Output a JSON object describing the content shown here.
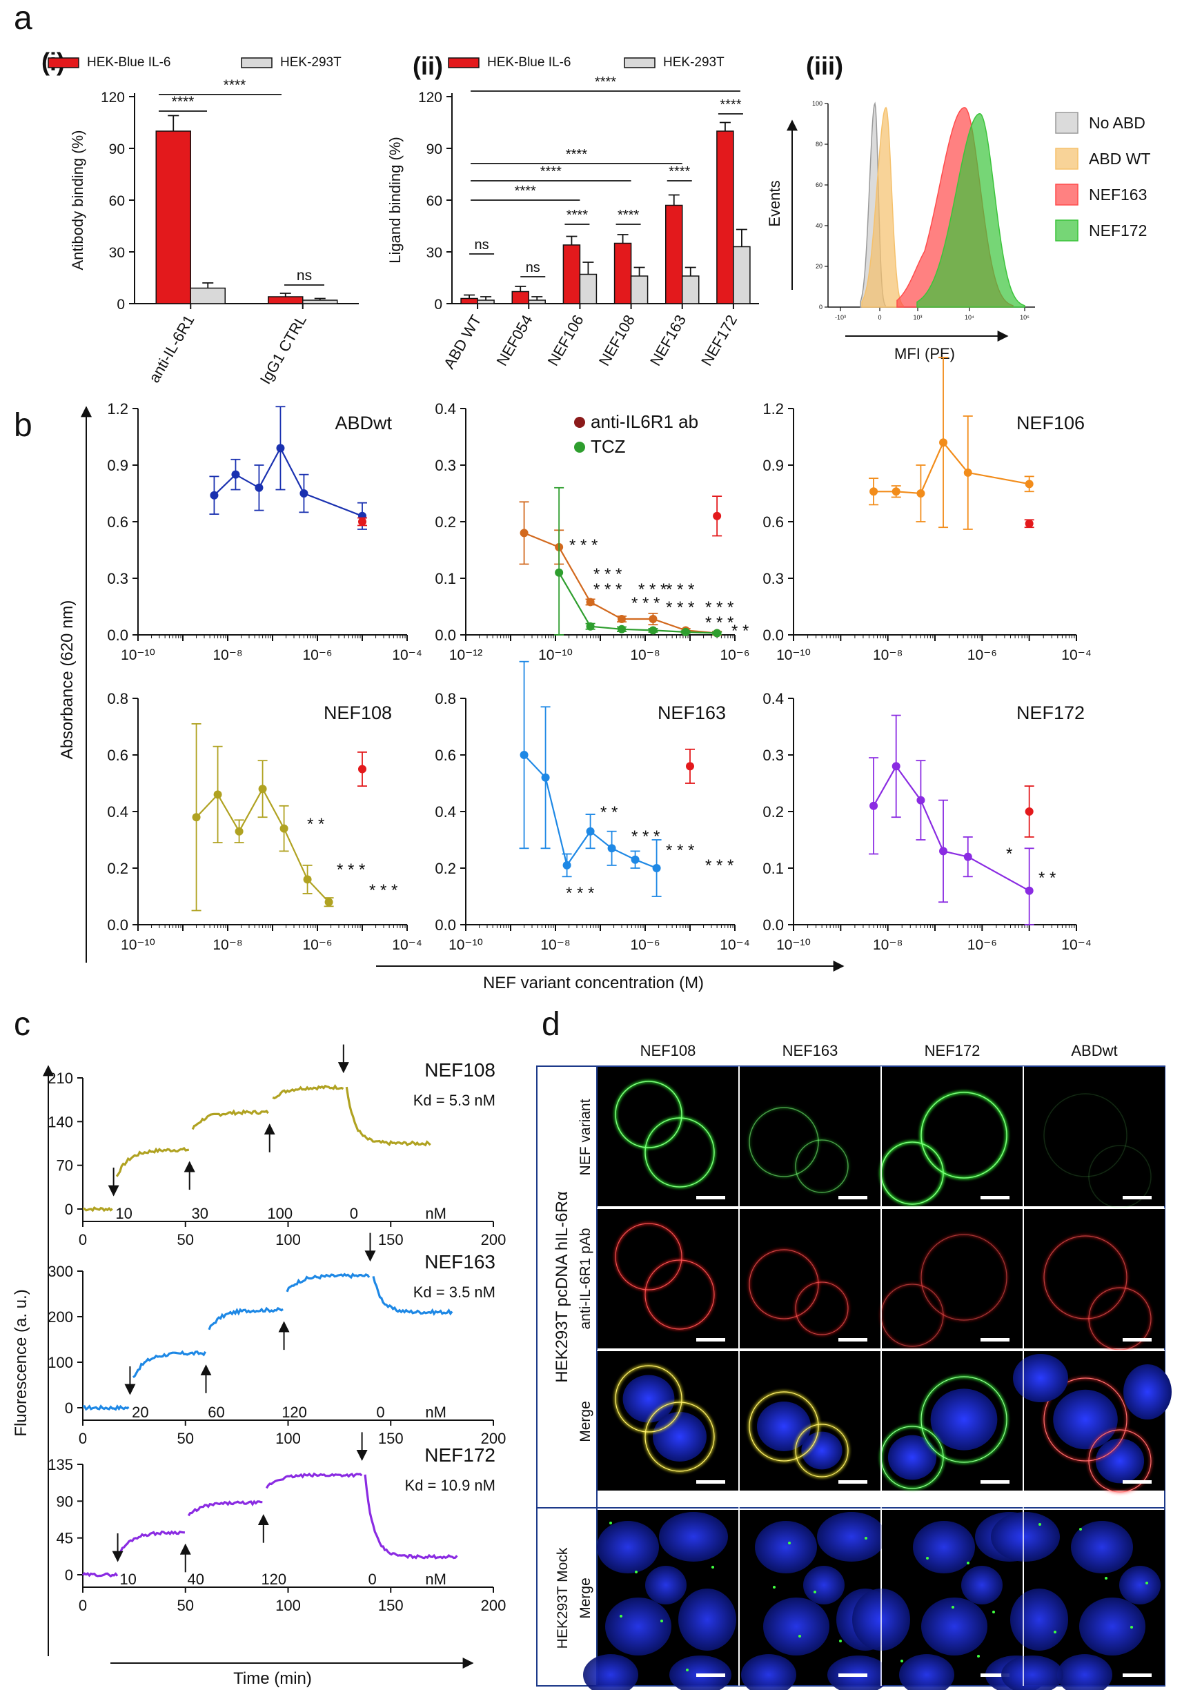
{
  "panel_labels": {
    "a": "a",
    "b": "b",
    "c": "c",
    "d": "d"
  },
  "subpanel_labels": {
    "i": "(i)",
    "ii": "(ii)",
    "iii": "(iii)"
  },
  "colors": {
    "red": "#e3191c",
    "gray": "#d9d9d9",
    "blue": "#1a31b0",
    "orange": "#f28c1a",
    "olive": "#b0a221",
    "sky": "#1e88e5",
    "purple": "#8a2be2",
    "dark_red": "#8b1a1a",
    "green": "#2e9e2e",
    "sienna": "#d2691e",
    "flow_gray": "#cccccc",
    "flow_tan": "#f5c16c",
    "flow_red": "#ff4c4c",
    "flow_green": "#3cc43c",
    "kd": "#9c1b5a"
  },
  "chart_data": [
    {
      "id": "a_i",
      "type": "bar",
      "legend": [
        "HEK-Blue IL-6",
        "HEK-293T"
      ],
      "categories": [
        "anti-IL-6R1",
        "IgG1 CTRL"
      ],
      "series": [
        {
          "name": "HEK-Blue IL-6",
          "values": [
            100,
            4
          ],
          "errors": [
            9,
            2
          ]
        },
        {
          "name": "HEK-293T",
          "values": [
            9,
            2
          ],
          "errors": [
            3,
            1
          ]
        }
      ],
      "ylabel": "Antibody binding (%)",
      "ylim": [
        0,
        120
      ],
      "yticks": [
        "0",
        "30",
        "60",
        "90",
        "120"
      ],
      "annotations": [
        {
          "text": "****",
          "from": 0,
          "to": 1
        },
        {
          "text": "****",
          "from": 0,
          "to": 0.3
        },
        {
          "text": "ns",
          "from": 1,
          "to": 1.3
        }
      ]
    },
    {
      "id": "a_ii",
      "type": "bar",
      "legend": [
        "HEK-Blue IL-6",
        "HEK-293T"
      ],
      "categories": [
        "ABD WT",
        "NEF054",
        "NEF106",
        "NEF108",
        "NEF163",
        "NEF172"
      ],
      "series": [
        {
          "name": "HEK-Blue IL-6",
          "values": [
            3,
            7,
            34,
            35,
            57,
            100
          ],
          "errors": [
            2,
            3,
            5,
            5,
            6,
            5
          ]
        },
        {
          "name": "HEK-293T",
          "values": [
            2,
            2,
            17,
            16,
            16,
            33
          ],
          "errors": [
            2,
            2,
            7,
            5,
            5,
            10
          ]
        }
      ],
      "ylabel": "Ligand binding (%)",
      "ylim": [
        0,
        120
      ],
      "yticks": [
        "0",
        "30",
        "60",
        "90",
        "120"
      ],
      "annotations": [
        "ns",
        "ns",
        "****",
        "****",
        "****",
        "****",
        "****",
        "****",
        "****",
        "****",
        "****"
      ]
    },
    {
      "id": "a_iii",
      "type": "area",
      "legend": [
        "No ABD",
        "ABD WT",
        "NEF163",
        "NEF172"
      ],
      "xlabel": "MFI (PE)",
      "ylabel": "Events",
      "xscale": "log",
      "xticks": [
        "-10³",
        "0",
        "10³",
        "10⁴",
        "10⁵"
      ],
      "yticks": [
        "0",
        "20",
        "40",
        "60",
        "80",
        "100"
      ],
      "series": [
        {
          "name": "No ABD",
          "peak": 0,
          "height": 100
        },
        {
          "name": "ABD WT",
          "peak": 0.3,
          "height": 98
        },
        {
          "name": "NEF163",
          "peak": 8000,
          "height": 98
        },
        {
          "name": "NEF172",
          "peak": 15000,
          "height": 95
        }
      ]
    },
    {
      "id": "b_abdwt",
      "type": "line",
      "title": "ABDwt",
      "xscale": "log",
      "xlim": [
        "10⁻¹⁰",
        "10⁻⁴"
      ],
      "ylim": [
        0,
        1.2
      ],
      "yticks": [
        "0.0",
        "0.3",
        "0.6",
        "0.9",
        "1.2"
      ],
      "xticks": [
        "10⁻¹⁰",
        "10⁻⁸",
        "10⁻⁶",
        "10⁻⁴"
      ],
      "x": [
        5e-09,
        1.5e-08,
        5e-08,
        1.5e-07,
        5e-07,
        1e-05
      ],
      "y": [
        0.74,
        0.85,
        0.78,
        0.99,
        0.75,
        0.63
      ],
      "errors": [
        0.1,
        0.08,
        0.12,
        0.22,
        0.1,
        0.07
      ],
      "control": {
        "x": 1e-05,
        "y": 0.6,
        "error": 0.02
      }
    },
    {
      "id": "b_ref",
      "type": "line",
      "xscale": "log",
      "xticks": [
        "10⁻¹²",
        "10⁻¹⁰",
        "10⁻⁸",
        "10⁻⁶"
      ],
      "ylim": [
        0,
        0.4
      ],
      "yticks": [
        "0.0",
        "0.1",
        "0.2",
        "0.3",
        "0.4"
      ],
      "legend": [
        "anti-IL6R1 ab",
        "TCZ"
      ],
      "series": [
        {
          "name": "anti-IL6R1 ab",
          "x": [
            2e-11,
            1.2e-10,
            6e-10,
            3e-09,
            1.5e-08,
            8e-08,
            4e-07
          ],
          "y": [
            0.18,
            0.155,
            0.058,
            0.028,
            0.028,
            0.008,
            0.003
          ],
          "errors": [
            0.055,
            0.03,
            0.005,
            0.005,
            0.01,
            0.003,
            0.003
          ]
        },
        {
          "name": "TCZ",
          "x": [
            1.2e-10,
            6e-10,
            3e-09,
            1.5e-08,
            8e-08,
            4e-07
          ],
          "y": [
            0.11,
            0.015,
            0.01,
            0.008,
            0.005,
            0.003
          ],
          "errors": [
            0.15,
            0.005,
            0.004,
            0.003,
            0.002,
            0.002
          ]
        }
      ],
      "control": {
        "x": 4e-07,
        "y": 0.21,
        "error": 0.035
      },
      "annotations_red": [
        "***",
        "***",
        "***",
        "***",
        "***"
      ],
      "annotations_green": [
        "***",
        "***",
        "***",
        "***",
        "***"
      ]
    },
    {
      "id": "b_nef106",
      "type": "line",
      "title": "NEF106",
      "xscale": "log",
      "xticks": [
        "10⁻¹⁰",
        "10⁻⁸",
        "10⁻⁶",
        "10⁻⁴"
      ],
      "ylim": [
        0,
        1.2
      ],
      "yticks": [
        "0.0",
        "0.3",
        "0.6",
        "0.9",
        "1.2"
      ],
      "x": [
        5e-09,
        1.5e-08,
        5e-08,
        1.5e-07,
        5e-07,
        1e-05
      ],
      "y": [
        0.76,
        0.76,
        0.75,
        1.02,
        0.86,
        0.8
      ],
      "errors": [
        0.07,
        0.03,
        0.15,
        0.45,
        0.3,
        0.04
      ],
      "control": {
        "x": 1e-05,
        "y": 0.59,
        "error": 0.02
      }
    },
    {
      "id": "b_nef108",
      "type": "line",
      "title": "NEF108",
      "xscale": "log",
      "xticks": [
        "10⁻¹⁰",
        "10⁻⁸",
        "10⁻⁶",
        "10⁻⁴"
      ],
      "ylim": [
        0,
        0.8
      ],
      "yticks": [
        "0.0",
        "0.2",
        "0.4",
        "0.6",
        "0.8"
      ],
      "x": [
        2e-09,
        6e-09,
        1.8e-08,
        6e-08,
        1.8e-07,
        6e-07,
        1.8e-06
      ],
      "y": [
        0.38,
        0.46,
        0.33,
        0.48,
        0.34,
        0.16,
        0.08
      ],
      "errors": [
        0.33,
        0.17,
        0.04,
        0.1,
        0.08,
        0.05,
        0.015
      ],
      "control": {
        "x": 1e-05,
        "y": 0.55,
        "error": 0.06
      },
      "annotations": [
        "**",
        "***",
        "***"
      ]
    },
    {
      "id": "b_nef163",
      "type": "line",
      "title": "NEF163",
      "xscale": "log",
      "xticks": [
        "10⁻¹⁰",
        "10⁻⁸",
        "10⁻⁶",
        "10⁻⁴"
      ],
      "ylim": [
        0,
        0.8
      ],
      "yticks": [
        "0.0",
        "0.2",
        "0.4",
        "0.6",
        "0.8"
      ],
      "x": [
        2e-09,
        6e-09,
        1.8e-08,
        6e-08,
        1.8e-07,
        6e-07,
        1.8e-06
      ],
      "y": [
        0.6,
        0.52,
        0.21,
        0.33,
        0.27,
        0.23,
        0.2
      ],
      "errors": [
        0.33,
        0.25,
        0.04,
        0.06,
        0.06,
        0.03,
        0.1
      ],
      "control": {
        "x": 1e-05,
        "y": 0.56,
        "error": 0.06
      },
      "annotations": [
        "***",
        "**",
        "***",
        "***",
        "***"
      ]
    },
    {
      "id": "b_nef172",
      "type": "line",
      "title": "NEF172",
      "xscale": "log",
      "xticks": [
        "10⁻¹⁰",
        "10⁻⁸",
        "10⁻⁶",
        "10⁻⁴"
      ],
      "ylim": [
        0,
        0.4
      ],
      "yticks": [
        "0.0",
        "0.1",
        "0.2",
        "0.3",
        "0.4"
      ],
      "x": [
        5e-09,
        1.5e-08,
        5e-08,
        1.5e-07,
        5e-07,
        1e-05
      ],
      "y": [
        0.21,
        0.28,
        0.22,
        0.13,
        0.12,
        0.06
      ],
      "errors": [
        0.085,
        0.09,
        0.07,
        0.09,
        0.035,
        0.075
      ],
      "control": {
        "x": 1e-05,
        "y": 0.2,
        "error": 0.045
      },
      "annotations": [
        "*",
        "**"
      ]
    },
    {
      "id": "c_nef108",
      "type": "line",
      "title": "NEF108",
      "kd": "Kd = 5.3 nM",
      "xlim": [
        0,
        200
      ],
      "ylim": [
        0,
        210
      ],
      "yticks": [
        "0",
        "70",
        "140",
        "210"
      ],
      "xticks": [
        "0",
        "50",
        "100",
        "150",
        "200"
      ],
      "concentrations": [
        "10",
        "30",
        "100",
        "0"
      ],
      "unit": "nM",
      "steps": [
        {
          "t0": 0,
          "t1": 15,
          "y": 0
        },
        {
          "t0": 15,
          "t1": 52,
          "y": 95
        },
        {
          "t0": 52,
          "t1": 91,
          "y": 155
        },
        {
          "t0": 91,
          "t1": 127,
          "y": 195
        },
        {
          "t0": 127,
          "t1": 170,
          "y": 105
        }
      ]
    },
    {
      "id": "c_nef163",
      "type": "line",
      "title": "NEF163",
      "kd": "Kd = 3.5 nM",
      "xlim": [
        0,
        200
      ],
      "ylim": [
        0,
        300
      ],
      "yticks": [
        "0",
        "100",
        "200",
        "300"
      ],
      "xticks": [
        "0",
        "50",
        "100",
        "150",
        "200"
      ],
      "concentrations": [
        "20",
        "60",
        "120",
        "0"
      ],
      "unit": "nM",
      "steps": [
        {
          "t0": 0,
          "t1": 23,
          "y": 0
        },
        {
          "t0": 23,
          "t1": 60,
          "y": 120
        },
        {
          "t0": 60,
          "t1": 98,
          "y": 215
        },
        {
          "t0": 98,
          "t1": 140,
          "y": 290
        },
        {
          "t0": 140,
          "t1": 180,
          "y": 210
        }
      ]
    },
    {
      "id": "c_nef172",
      "type": "line",
      "title": "NEF172",
      "kd": "Kd = 10.9 nM",
      "xlim": [
        0,
        200
      ],
      "ylim": [
        0,
        135
      ],
      "yticks": [
        "0",
        "45",
        "90",
        "135"
      ],
      "xticks": [
        "0",
        "50",
        "100",
        "150",
        "200"
      ],
      "concentrations": [
        "10",
        "40",
        "120",
        "0"
      ],
      "unit": "nM",
      "steps": [
        {
          "t0": 0,
          "t1": 17,
          "y": 0
        },
        {
          "t0": 17,
          "t1": 50,
          "y": 52
        },
        {
          "t0": 50,
          "t1": 88,
          "y": 88
        },
        {
          "t0": 88,
          "t1": 136,
          "y": 122
        },
        {
          "t0": 136,
          "t1": 183,
          "y": 22
        }
      ]
    }
  ],
  "labels": {
    "b_ylabel": "Absorbance (620 nm)",
    "b_xlabel": "NEF variant concentration (M)",
    "c_ylabel": "Fluorescence (a. u.)",
    "c_xlabel": "Time (min)"
  },
  "micro": {
    "columns": [
      "NEF108",
      "NEF163",
      "NEF172",
      "ABDwt"
    ],
    "group1_label": "HEK293T pcDNA hIL-6Rα",
    "group2_label": "HEK293T Mock",
    "rows": [
      "NEF variant",
      "anti-IL-6R1 pAb",
      "Merge",
      "Merge"
    ]
  }
}
